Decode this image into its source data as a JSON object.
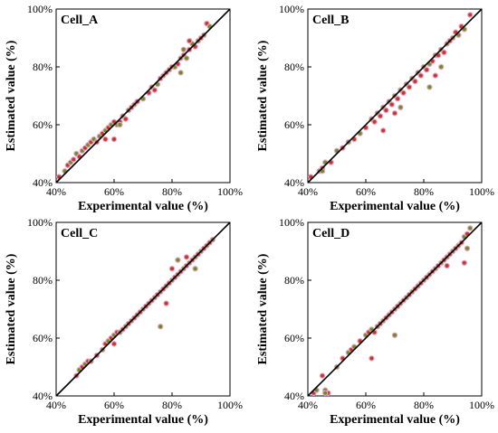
{
  "chart_data": [
    {
      "type": "scatter",
      "title": "Cell_A",
      "xlabel": "Experimental value (%)",
      "ylabel": "Estimated value (%)",
      "xlim": [
        40,
        100
      ],
      "ylim": [
        40,
        100
      ],
      "x_ticks": [
        "40%",
        "60%",
        "80%",
        "100%"
      ],
      "y_ticks": [
        "40%",
        "60%",
        "80%",
        "100%"
      ],
      "reference_line": "y = x",
      "marker_colors": [
        "#c0392b",
        "#6b8e23"
      ],
      "points": [
        [
          41,
          42
        ],
        [
          43,
          44
        ],
        [
          44,
          46
        ],
        [
          45,
          47
        ],
        [
          46,
          48
        ],
        [
          47,
          50
        ],
        [
          48,
          49
        ],
        [
          49,
          51
        ],
        [
          50,
          52
        ],
        [
          51,
          53
        ],
        [
          52,
          54
        ],
        [
          53,
          55
        ],
        [
          54,
          54
        ],
        [
          55,
          56
        ],
        [
          56,
          57
        ],
        [
          57,
          58
        ],
        [
          58,
          59
        ],
        [
          59,
          60
        ],
        [
          60,
          61
        ],
        [
          61,
          60
        ],
        [
          62,
          61
        ],
        [
          63,
          63
        ],
        [
          64,
          62
        ],
        [
          65,
          65
        ],
        [
          66,
          66
        ],
        [
          67,
          67
        ],
        [
          68,
          68
        ],
        [
          70,
          69
        ],
        [
          72,
          71
        ],
        [
          73,
          73
        ],
        [
          74,
          72
        ],
        [
          75,
          74
        ],
        [
          76,
          76
        ],
        [
          77,
          77
        ],
        [
          78,
          78
        ],
        [
          79,
          79
        ],
        [
          80,
          80
        ],
        [
          81,
          80
        ],
        [
          82,
          81
        ],
        [
          83,
          83
        ],
        [
          84,
          84
        ],
        [
          85,
          83
        ],
        [
          86,
          86
        ],
        [
          87,
          88
        ],
        [
          88,
          87
        ],
        [
          89,
          89
        ],
        [
          90,
          90
        ],
        [
          91,
          91
        ],
        [
          92,
          95
        ],
        [
          93,
          94
        ],
        [
          57,
          55
        ],
        [
          62,
          60
        ],
        [
          60,
          55
        ],
        [
          84,
          86
        ],
        [
          86,
          89
        ],
        [
          83,
          78
        ]
      ]
    },
    {
      "type": "scatter",
      "title": "Cell_B",
      "xlabel": "Experimental value (%)",
      "ylabel": "Estimated value (%)",
      "xlim": [
        40,
        100
      ],
      "ylim": [
        40,
        100
      ],
      "x_ticks": [
        "40%",
        "60%",
        "80%",
        "100%"
      ],
      "y_ticks": [
        "40%",
        "60%",
        "80%",
        "100%"
      ],
      "reference_line": "y = x",
      "marker_colors": [
        "#c0392b",
        "#6b8e23"
      ],
      "points": [
        [
          41,
          42
        ],
        [
          44,
          44
        ],
        [
          45,
          45
        ],
        [
          46,
          47
        ],
        [
          48,
          47
        ],
        [
          50,
          51
        ],
        [
          52,
          52
        ],
        [
          54,
          54
        ],
        [
          56,
          55
        ],
        [
          58,
          57
        ],
        [
          60,
          59
        ],
        [
          62,
          62
        ],
        [
          63,
          61
        ],
        [
          64,
          64
        ],
        [
          65,
          63
        ],
        [
          66,
          66
        ],
        [
          67,
          65
        ],
        [
          68,
          68
        ],
        [
          69,
          67
        ],
        [
          70,
          70
        ],
        [
          71,
          69
        ],
        [
          72,
          72
        ],
        [
          73,
          71
        ],
        [
          74,
          74
        ],
        [
          75,
          73
        ],
        [
          76,
          76
        ],
        [
          77,
          75
        ],
        [
          78,
          78
        ],
        [
          79,
          77
        ],
        [
          80,
          80
        ],
        [
          81,
          79
        ],
        [
          82,
          81
        ],
        [
          83,
          82
        ],
        [
          84,
          84
        ],
        [
          85,
          84
        ],
        [
          86,
          86
        ],
        [
          87,
          85
        ],
        [
          88,
          88
        ],
        [
          89,
          89
        ],
        [
          90,
          90
        ],
        [
          91,
          92
        ],
        [
          92,
          91
        ],
        [
          93,
          94
        ],
        [
          94,
          93
        ],
        [
          96,
          98
        ],
        [
          82,
          73
        ],
        [
          84,
          77
        ],
        [
          86,
          80
        ],
        [
          70,
          64
        ],
        [
          72,
          66
        ],
        [
          66,
          58
        ],
        [
          45,
          44
        ]
      ]
    },
    {
      "type": "scatter",
      "title": "Cell_C",
      "xlabel": "Experimental value (%)",
      "ylabel": "Estimated value (%)",
      "xlim": [
        40,
        100
      ],
      "ylim": [
        40,
        100
      ],
      "x_ticks": [
        "40%",
        "60%",
        "80%",
        "100%"
      ],
      "y_ticks": [
        "40%",
        "60%",
        "80%",
        "100%"
      ],
      "reference_line": "y = x",
      "marker_colors": [
        "#c0392b",
        "#6b8e23"
      ],
      "points": [
        [
          47,
          47
        ],
        [
          48,
          49
        ],
        [
          49,
          50
        ],
        [
          50,
          51
        ],
        [
          51,
          52
        ],
        [
          52,
          52
        ],
        [
          54,
          54
        ],
        [
          56,
          56
        ],
        [
          57,
          58
        ],
        [
          58,
          59
        ],
        [
          59,
          60
        ],
        [
          60,
          61
        ],
        [
          61,
          62
        ],
        [
          62,
          62
        ],
        [
          63,
          63
        ],
        [
          64,
          64
        ],
        [
          65,
          65
        ],
        [
          66,
          66
        ],
        [
          67,
          67
        ],
        [
          68,
          68
        ],
        [
          69,
          69
        ],
        [
          70,
          70
        ],
        [
          71,
          71
        ],
        [
          72,
          72
        ],
        [
          73,
          73
        ],
        [
          74,
          74
        ],
        [
          75,
          75
        ],
        [
          76,
          76
        ],
        [
          77,
          77
        ],
        [
          78,
          78
        ],
        [
          79,
          79
        ],
        [
          80,
          80
        ],
        [
          81,
          81
        ],
        [
          82,
          82
        ],
        [
          83,
          83
        ],
        [
          84,
          84
        ],
        [
          85,
          85
        ],
        [
          86,
          86
        ],
        [
          87,
          87
        ],
        [
          88,
          88
        ],
        [
          89,
          89
        ],
        [
          90,
          90
        ],
        [
          91,
          91
        ],
        [
          92,
          92
        ],
        [
          93,
          93
        ],
        [
          94,
          94
        ],
        [
          78,
          72
        ],
        [
          76,
          64
        ],
        [
          80,
          84
        ],
        [
          82,
          87
        ],
        [
          85,
          88
        ],
        [
          88,
          84
        ],
        [
          60,
          58
        ]
      ]
    },
    {
      "type": "scatter",
      "title": "Cell_D",
      "xlabel": "Experimental value (%)",
      "ylabel": "Estimated value (%)",
      "xlim": [
        40,
        100
      ],
      "ylim": [
        40,
        100
      ],
      "x_ticks": [
        "40%",
        "60%",
        "80%",
        "100%"
      ],
      "y_ticks": [
        "40%",
        "60%",
        "80%",
        "100%"
      ],
      "reference_line": "y = x",
      "marker_colors": [
        "#c0392b",
        "#6b8e23"
      ],
      "points": [
        [
          42,
          41
        ],
        [
          43,
          42
        ],
        [
          45,
          47
        ],
        [
          46,
          42
        ],
        [
          47,
          41
        ],
        [
          50,
          50
        ],
        [
          52,
          53
        ],
        [
          54,
          55
        ],
        [
          55,
          56
        ],
        [
          56,
          57
        ],
        [
          58,
          59
        ],
        [
          60,
          61
        ],
        [
          61,
          62
        ],
        [
          62,
          63
        ],
        [
          63,
          62
        ],
        [
          64,
          64
        ],
        [
          65,
          65
        ],
        [
          66,
          66
        ],
        [
          67,
          67
        ],
        [
          68,
          68
        ],
        [
          69,
          69
        ],
        [
          70,
          70
        ],
        [
          71,
          71
        ],
        [
          72,
          72
        ],
        [
          73,
          73
        ],
        [
          74,
          74
        ],
        [
          75,
          75
        ],
        [
          76,
          76
        ],
        [
          77,
          77
        ],
        [
          78,
          78
        ],
        [
          79,
          79
        ],
        [
          80,
          80
        ],
        [
          81,
          81
        ],
        [
          82,
          82
        ],
        [
          83,
          83
        ],
        [
          84,
          84
        ],
        [
          85,
          85
        ],
        [
          86,
          86
        ],
        [
          87,
          87
        ],
        [
          88,
          88
        ],
        [
          89,
          89
        ],
        [
          90,
          90
        ],
        [
          91,
          91
        ],
        [
          92,
          92
        ],
        [
          93,
          93
        ],
        [
          94,
          95
        ],
        [
          95,
          96
        ],
        [
          96,
          98
        ],
        [
          62,
          53
        ],
        [
          70,
          61
        ],
        [
          94,
          86
        ],
        [
          95,
          91
        ],
        [
          88,
          85
        ],
        [
          46,
          41
        ]
      ]
    }
  ]
}
